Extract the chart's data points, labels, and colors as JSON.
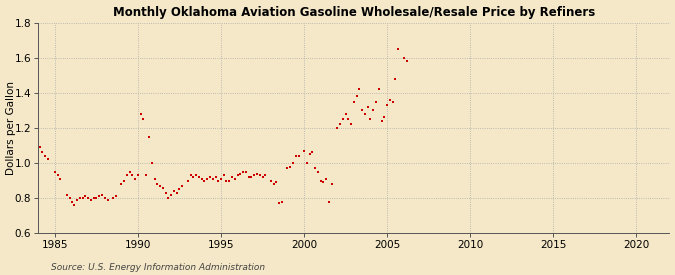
{
  "title": "Monthly Oklahoma Aviation Gasoline Wholesale/Resale Price by Refiners",
  "ylabel": "Dollars per Gallon",
  "source": "Source: U.S. Energy Information Administration",
  "xlim": [
    1984.0,
    2022.0
  ],
  "ylim": [
    0.6,
    1.8
  ],
  "yticks": [
    0.6,
    0.8,
    1.0,
    1.2,
    1.4,
    1.6,
    1.8
  ],
  "xticks": [
    1985,
    1990,
    1995,
    2000,
    2005,
    2010,
    2015,
    2020
  ],
  "bg_color": "#f5e8c8",
  "plot_bg_color": "#f5e8c8",
  "marker_color": "#cc0000",
  "marker_size": 4.5,
  "data": [
    [
      1984.08,
      1.09
    ],
    [
      1984.25,
      1.06
    ],
    [
      1984.42,
      1.04
    ],
    [
      1984.58,
      1.02
    ],
    [
      1985.0,
      0.95
    ],
    [
      1985.17,
      0.93
    ],
    [
      1985.33,
      0.91
    ],
    [
      1985.75,
      0.82
    ],
    [
      1985.92,
      0.8
    ],
    [
      1986.0,
      0.78
    ],
    [
      1986.17,
      0.76
    ],
    [
      1986.33,
      0.79
    ],
    [
      1986.5,
      0.8
    ],
    [
      1986.67,
      0.8
    ],
    [
      1986.83,
      0.81
    ],
    [
      1987.0,
      0.8
    ],
    [
      1987.17,
      0.79
    ],
    [
      1987.33,
      0.8
    ],
    [
      1987.5,
      0.8
    ],
    [
      1987.67,
      0.81
    ],
    [
      1987.83,
      0.82
    ],
    [
      1988.0,
      0.8
    ],
    [
      1988.17,
      0.79
    ],
    [
      1988.5,
      0.8
    ],
    [
      1988.67,
      0.81
    ],
    [
      1989.0,
      0.88
    ],
    [
      1989.17,
      0.9
    ],
    [
      1989.33,
      0.93
    ],
    [
      1989.5,
      0.95
    ],
    [
      1989.67,
      0.93
    ],
    [
      1989.83,
      0.91
    ],
    [
      1990.0,
      0.93
    ],
    [
      1990.17,
      1.28
    ],
    [
      1990.33,
      1.25
    ],
    [
      1990.5,
      0.93
    ],
    [
      1990.67,
      1.15
    ],
    [
      1990.83,
      1.0
    ],
    [
      1991.0,
      0.91
    ],
    [
      1991.17,
      0.88
    ],
    [
      1991.33,
      0.87
    ],
    [
      1991.5,
      0.86
    ],
    [
      1991.67,
      0.83
    ],
    [
      1991.83,
      0.8
    ],
    [
      1992.0,
      0.82
    ],
    [
      1992.17,
      0.84
    ],
    [
      1992.33,
      0.83
    ],
    [
      1992.5,
      0.85
    ],
    [
      1992.67,
      0.87
    ],
    [
      1993.0,
      0.9
    ],
    [
      1993.17,
      0.93
    ],
    [
      1993.33,
      0.92
    ],
    [
      1993.5,
      0.93
    ],
    [
      1993.67,
      0.92
    ],
    [
      1993.83,
      0.91
    ],
    [
      1994.0,
      0.9
    ],
    [
      1994.17,
      0.91
    ],
    [
      1994.33,
      0.92
    ],
    [
      1994.5,
      0.91
    ],
    [
      1994.67,
      0.92
    ],
    [
      1994.83,
      0.9
    ],
    [
      1995.0,
      0.91
    ],
    [
      1995.17,
      0.93
    ],
    [
      1995.33,
      0.9
    ],
    [
      1995.5,
      0.9
    ],
    [
      1995.67,
      0.92
    ],
    [
      1995.83,
      0.91
    ],
    [
      1996.0,
      0.93
    ],
    [
      1996.17,
      0.94
    ],
    [
      1996.33,
      0.95
    ],
    [
      1996.5,
      0.95
    ],
    [
      1996.67,
      0.92
    ],
    [
      1996.83,
      0.92
    ],
    [
      1997.0,
      0.93
    ],
    [
      1997.17,
      0.94
    ],
    [
      1997.33,
      0.93
    ],
    [
      1997.5,
      0.92
    ],
    [
      1997.67,
      0.93
    ],
    [
      1998.0,
      0.9
    ],
    [
      1998.17,
      0.88
    ],
    [
      1998.33,
      0.89
    ],
    [
      1998.5,
      0.77
    ],
    [
      1998.67,
      0.78
    ],
    [
      1999.0,
      0.97
    ],
    [
      1999.17,
      0.98
    ],
    [
      1999.33,
      1.0
    ],
    [
      1999.5,
      1.04
    ],
    [
      1999.67,
      1.04
    ],
    [
      2000.0,
      1.07
    ],
    [
      2000.17,
      1.0
    ],
    [
      2000.33,
      1.05
    ],
    [
      2000.5,
      1.06
    ],
    [
      2000.67,
      0.97
    ],
    [
      2000.83,
      0.95
    ],
    [
      2001.0,
      0.9
    ],
    [
      2001.17,
      0.89
    ],
    [
      2001.33,
      0.91
    ],
    [
      2001.5,
      0.78
    ],
    [
      2001.67,
      0.88
    ],
    [
      2002.0,
      1.2
    ],
    [
      2002.17,
      1.22
    ],
    [
      2002.33,
      1.25
    ],
    [
      2002.5,
      1.28
    ],
    [
      2002.67,
      1.25
    ],
    [
      2002.83,
      1.22
    ],
    [
      2003.0,
      1.35
    ],
    [
      2003.17,
      1.38
    ],
    [
      2003.33,
      1.42
    ],
    [
      2003.5,
      1.3
    ],
    [
      2003.67,
      1.28
    ],
    [
      2003.83,
      1.32
    ],
    [
      2004.0,
      1.25
    ],
    [
      2004.17,
      1.3
    ],
    [
      2004.33,
      1.35
    ],
    [
      2004.5,
      1.42
    ],
    [
      2004.67,
      1.24
    ],
    [
      2004.83,
      1.26
    ],
    [
      2005.0,
      1.33
    ],
    [
      2005.17,
      1.36
    ],
    [
      2005.33,
      1.35
    ],
    [
      2005.5,
      1.48
    ],
    [
      2005.67,
      1.65
    ],
    [
      2006.0,
      1.6
    ],
    [
      2006.17,
      1.58
    ]
  ]
}
